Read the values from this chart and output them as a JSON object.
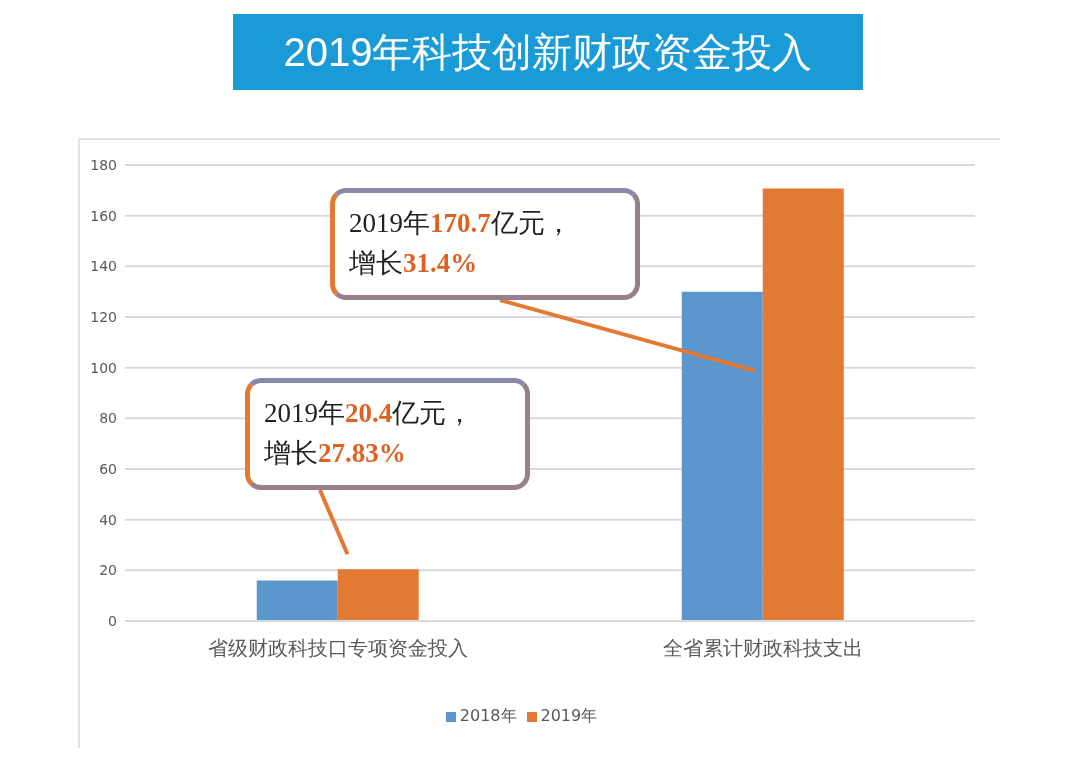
{
  "chart_data": {
    "type": "bar",
    "title": "2019年科技创新财政资金投入",
    "categories": [
      "省级财政科技口专项资金投入",
      "全省累计财政科技支出"
    ],
    "series": [
      {
        "name": "2018年",
        "color": "#5b97cd",
        "values": [
          16,
          130
        ]
      },
      {
        "name": "2019年",
        "color": "#e27a34",
        "values": [
          20.4,
          170.7
        ]
      }
    ],
    "ylim": [
      0,
      180
    ],
    "yticks": [
      0,
      20,
      40,
      60,
      80,
      100,
      120,
      140,
      160,
      180
    ],
    "grid": "y",
    "legend": "bottom",
    "annotations": [
      "2019年20.4亿元，增长27.83%",
      "2019年170.7亿元，增长31.4%"
    ]
  }
}
